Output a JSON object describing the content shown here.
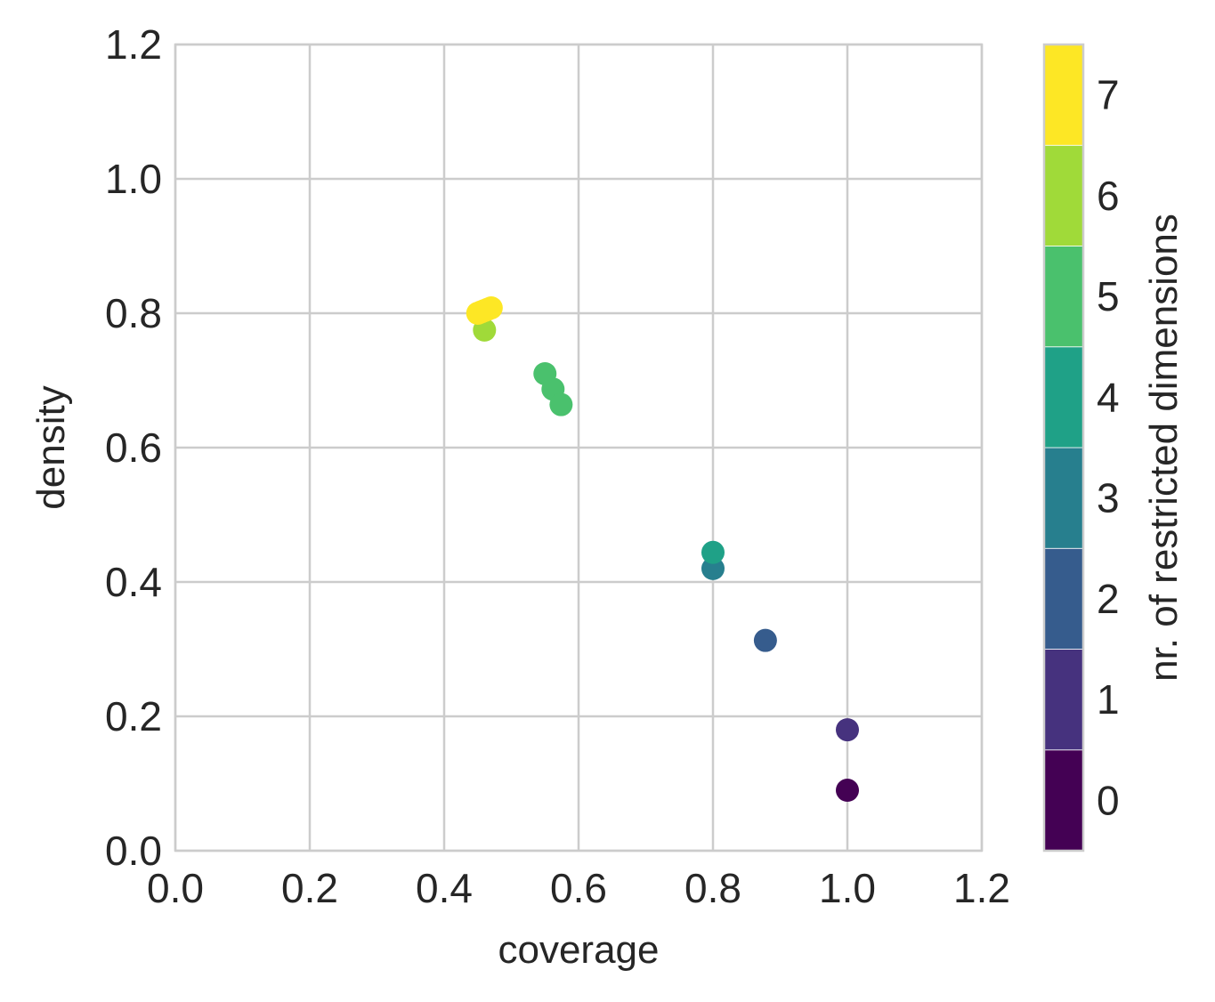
{
  "chart_data": {
    "type": "scatter",
    "xlabel": "coverage",
    "ylabel": "density",
    "xlim": [
      0.0,
      1.2
    ],
    "ylim": [
      0.0,
      1.2
    ],
    "xticks": [
      "0.0",
      "0.2",
      "0.4",
      "0.6",
      "0.8",
      "1.0",
      "1.2"
    ],
    "yticks": [
      "0.0",
      "0.2",
      "0.4",
      "0.6",
      "0.8",
      "1.0",
      "1.2"
    ],
    "grid": true,
    "colormap": "viridis",
    "points": [
      {
        "x": 1.0,
        "y": 0.09,
        "dims": 0
      },
      {
        "x": 1.0,
        "y": 0.18,
        "dims": 1
      },
      {
        "x": 0.878,
        "y": 0.313,
        "dims": 2
      },
      {
        "x": 0.8,
        "y": 0.42,
        "dims": 3
      },
      {
        "x": 0.8,
        "y": 0.444,
        "dims": 4
      },
      {
        "x": 0.55,
        "y": 0.71,
        "dims": 5
      },
      {
        "x": 0.562,
        "y": 0.687,
        "dims": 5
      },
      {
        "x": 0.574,
        "y": 0.664,
        "dims": 5
      },
      {
        "x": 0.46,
        "y": 0.775,
        "dims": 6
      },
      {
        "x": 0.45,
        "y": 0.8,
        "dims": 7
      },
      {
        "x": 0.455,
        "y": 0.802,
        "dims": 7
      },
      {
        "x": 0.46,
        "y": 0.804,
        "dims": 7
      },
      {
        "x": 0.465,
        "y": 0.806,
        "dims": 7
      },
      {
        "x": 0.47,
        "y": 0.808,
        "dims": 7
      }
    ],
    "colorbar": {
      "label": "nr. of restricted dimensions",
      "ticks": [
        "0",
        "1",
        "2",
        "3",
        "4",
        "5",
        "6",
        "7"
      ],
      "colors": [
        "#440154",
        "#46327e",
        "#365c8d",
        "#277f8e",
        "#1fa187",
        "#4ac16d",
        "#a0da39",
        "#fde725"
      ]
    }
  }
}
